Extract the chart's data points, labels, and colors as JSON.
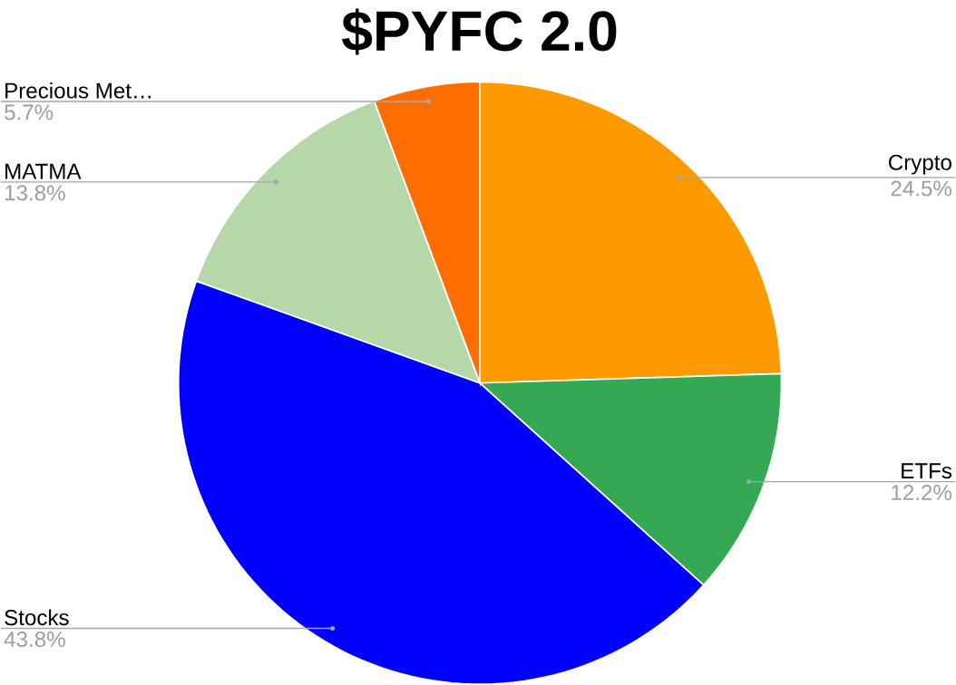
{
  "chart_data": {
    "type": "pie",
    "title": "$PYFC 2.0",
    "categories": [
      "Crypto",
      "ETFs",
      "Stocks",
      "MATMA",
      "Precious Met…"
    ],
    "values": [
      24.5,
      12.2,
      43.8,
      13.8,
      5.7
    ],
    "colors": [
      "#ff9900",
      "#34a853",
      "#0000ff",
      "#b6d7a8",
      "#ff6d01"
    ],
    "value_labels": [
      "24.5%",
      "12.2%",
      "43.8%",
      "13.8%",
      "5.7%"
    ]
  }
}
